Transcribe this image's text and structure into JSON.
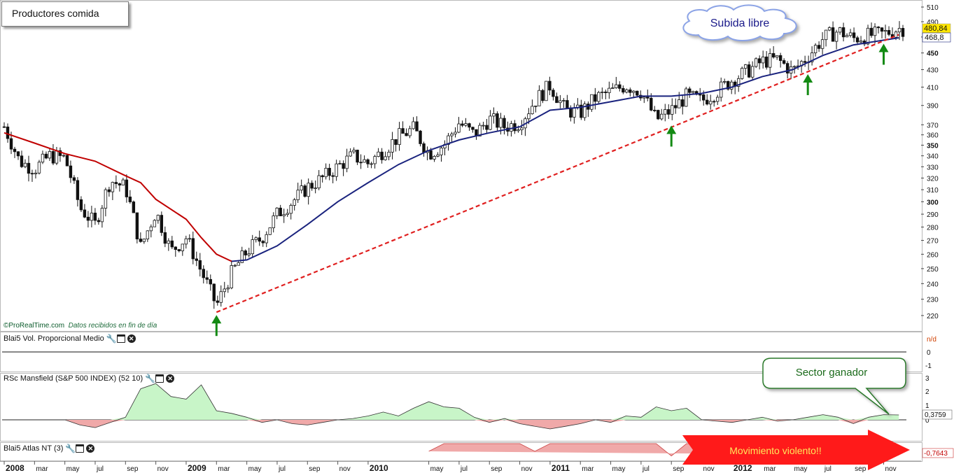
{
  "title": "Productores comida",
  "credit": {
    "source": "ProRealTime.com",
    "note": "Datos recibidos en fin de día"
  },
  "panels": {
    "volume": {
      "label": "Blai5 Vol. Proporcional Medio",
      "scale": [
        "n/d",
        "0",
        "-1"
      ]
    },
    "mansfield": {
      "label": "RSc Mansfield (S&P 500 INDEX) (52 10)",
      "scale": [
        "3",
        "2",
        "1",
        "0"
      ],
      "last_value": "0,3759"
    },
    "atlas": {
      "label": "Blai5 Atlas NT (3)",
      "last_value": "-0,7643"
    }
  },
  "annotations": {
    "cloud": "Subida libre",
    "callout": "Sector ganador",
    "arrow_banner": "Movimiento violento!!"
  },
  "colors": {
    "candle": "#111111",
    "ma_red": "#c00000",
    "ma_blue": "#1a237e",
    "trendline": "#e02020",
    "support_arrow": "#138a13",
    "rs_positive": "#c8f5c8",
    "rs_negative": "#f0a9a9",
    "banner": "#ff1a1a",
    "last_price_bg": "#ffe600"
  },
  "chart_data": {
    "type": "line",
    "subtype": "weekly candlestick with moving averages",
    "title": "Productores comida",
    "y_scale": "log",
    "ylim": [
      215,
      512
    ],
    "yticks": [
      "220",
      "230",
      "240",
      "250",
      "260",
      "270",
      "280",
      "290",
      "300",
      "310",
      "320",
      "330",
      "340",
      "350",
      "360",
      "370",
      "390",
      "410",
      "430",
      "450",
      "470",
      "490",
      "510"
    ],
    "last_price": "480,84",
    "last_ma": "468,8",
    "x_range": [
      "2008-01",
      "2012-12"
    ],
    "xticks": [
      {
        "date": "2008-01",
        "label": "2008",
        "major": true
      },
      {
        "date": "2008-03",
        "label": "mar"
      },
      {
        "date": "2008-05",
        "label": "may"
      },
      {
        "date": "2008-07",
        "label": "jul"
      },
      {
        "date": "2008-09",
        "label": "sep"
      },
      {
        "date": "2008-11",
        "label": "nov"
      },
      {
        "date": "2009-01",
        "label": "2009",
        "major": true
      },
      {
        "date": "2009-03",
        "label": "mar"
      },
      {
        "date": "2009-05",
        "label": "may"
      },
      {
        "date": "2009-07",
        "label": "jul"
      },
      {
        "date": "2009-09",
        "label": "sep"
      },
      {
        "date": "2009-11",
        "label": "nov"
      },
      {
        "date": "2010-01",
        "label": "2010",
        "major": true
      },
      {
        "date": "2010-05",
        "label": "may"
      },
      {
        "date": "2010-07",
        "label": "jul"
      },
      {
        "date": "2010-09",
        "label": "sep"
      },
      {
        "date": "2010-11",
        "label": "nov"
      },
      {
        "date": "2011-01",
        "label": "2011",
        "major": true
      },
      {
        "date": "2011-03",
        "label": "mar"
      },
      {
        "date": "2011-05",
        "label": "may"
      },
      {
        "date": "2011-07",
        "label": "jul"
      },
      {
        "date": "2011-09",
        "label": "sep"
      },
      {
        "date": "2011-11",
        "label": "nov"
      },
      {
        "date": "2012-01",
        "label": "2012",
        "major": true
      },
      {
        "date": "2012-03",
        "label": "mar"
      },
      {
        "date": "2012-05",
        "label": "may"
      },
      {
        "date": "2012-07",
        "label": "jul"
      },
      {
        "date": "2012-09",
        "label": "sep"
      },
      {
        "date": "2012-11",
        "label": "nov"
      }
    ],
    "price_close": [
      [
        "2008-01",
        368
      ],
      [
        "2008-02",
        335
      ],
      [
        "2008-03",
        328
      ],
      [
        "2008-04",
        340
      ],
      [
        "2008-05",
        338
      ],
      [
        "2008-06",
        295
      ],
      [
        "2008-07",
        282
      ],
      [
        "2008-08",
        318
      ],
      [
        "2008-09",
        312
      ],
      [
        "2008-10",
        265
      ],
      [
        "2008-11",
        292
      ],
      [
        "2008-12",
        262
      ],
      [
        "2009-01",
        272
      ],
      [
        "2009-02",
        248
      ],
      [
        "2009-03",
        226
      ],
      [
        "2009-04",
        247
      ],
      [
        "2009-05",
        262
      ],
      [
        "2009-06",
        272
      ],
      [
        "2009-07",
        290
      ],
      [
        "2009-08",
        300
      ],
      [
        "2009-09",
        312
      ],
      [
        "2009-10",
        320
      ],
      [
        "2009-11",
        330
      ],
      [
        "2009-12",
        340
      ],
      [
        "2010-01",
        333
      ],
      [
        "2010-02",
        345
      ],
      [
        "2010-03",
        358
      ],
      [
        "2010-04",
        366
      ],
      [
        "2010-05",
        342
      ],
      [
        "2010-06",
        350
      ],
      [
        "2010-07",
        372
      ],
      [
        "2010-08",
        360
      ],
      [
        "2010-09",
        376
      ],
      [
        "2010-10",
        368
      ],
      [
        "2010-11",
        372
      ],
      [
        "2010-12",
        395
      ],
      [
        "2011-01",
        412
      ],
      [
        "2011-02",
        385
      ],
      [
        "2011-03",
        382
      ],
      [
        "2011-04",
        398
      ],
      [
        "2011-05",
        405
      ],
      [
        "2011-06",
        412
      ],
      [
        "2011-07",
        405
      ],
      [
        "2011-08",
        375
      ],
      [
        "2011-09",
        385
      ],
      [
        "2011-10",
        400
      ],
      [
        "2011-11",
        395
      ],
      [
        "2011-12",
        405
      ],
      [
        "2012-01",
        418
      ],
      [
        "2012-02",
        428
      ],
      [
        "2012-03",
        440
      ],
      [
        "2012-04",
        442
      ],
      [
        "2012-05",
        428
      ],
      [
        "2012-06",
        446
      ],
      [
        "2012-07",
        468
      ],
      [
        "2012-08",
        478
      ],
      [
        "2012-09",
        468
      ],
      [
        "2012-10",
        472
      ],
      [
        "2012-11",
        474
      ],
      [
        "2012-12",
        481
      ]
    ],
    "series": [
      {
        "values": [
          [
            "2008-01",
            362
          ],
          [
            "2008-03",
            352
          ],
          [
            "2008-05",
            342
          ],
          [
            "2008-07",
            335
          ],
          [
            "2008-09",
            322
          ],
          [
            "2008-10",
            316
          ],
          [
            "2008-11",
            302
          ],
          [
            "2009-01",
            286
          ],
          [
            "2009-02",
            272
          ],
          [
            "2009-03",
            260
          ],
          [
            "2009-04",
            255
          ]
        ]
      },
      {
        "values": [
          [
            "2009-04",
            255
          ],
          [
            "2009-05",
            256
          ],
          [
            "2009-07",
            266
          ],
          [
            "2009-09",
            282
          ],
          [
            "2009-11",
            300
          ],
          [
            "2010-01",
            316
          ],
          [
            "2010-03",
            332
          ],
          [
            "2010-05",
            345
          ],
          [
            "2010-07",
            355
          ],
          [
            "2010-09",
            362
          ],
          [
            "2010-11",
            368
          ],
          [
            "2011-01",
            385
          ],
          [
            "2011-03",
            388
          ],
          [
            "2011-05",
            394
          ],
          [
            "2011-07",
            400
          ],
          [
            "2011-09",
            400
          ],
          [
            "2011-11",
            403
          ],
          [
            "2012-01",
            410
          ],
          [
            "2012-03",
            422
          ],
          [
            "2012-05",
            430
          ],
          [
            "2012-07",
            447
          ],
          [
            "2012-09",
            460
          ],
          [
            "2012-11",
            466
          ],
          [
            "2012-12",
            469
          ]
        ]
      }
    ],
    "trendline": {
      "from": [
        "2009-03",
        222
      ],
      "to": [
        "2012-12",
        473
      ]
    },
    "support_arrows": [
      [
        "2009-03",
        222
      ],
      [
        "2011-09",
        372
      ],
      [
        "2012-06",
        428
      ],
      [
        "2012-11",
        465
      ]
    ],
    "mansfield_rs": {
      "ylim": [
        -1,
        3.5
      ],
      "values": [
        [
          "2008-05",
          0.0
        ],
        [
          "2008-06",
          -0.4
        ],
        [
          "2008-07",
          -0.6
        ],
        [
          "2008-08",
          -0.2
        ],
        [
          "2008-09",
          0.2
        ],
        [
          "2008-10",
          2.4
        ],
        [
          "2008-11",
          2.8
        ],
        [
          "2008-12",
          1.8
        ],
        [
          "2009-01",
          1.6
        ],
        [
          "2009-02",
          2.7
        ],
        [
          "2009-03",
          0.7
        ],
        [
          "2009-04",
          0.5
        ],
        [
          "2009-05",
          0.2
        ],
        [
          "2009-06",
          -0.2
        ],
        [
          "2009-07",
          0.0
        ],
        [
          "2009-08",
          -0.3
        ],
        [
          "2009-09",
          -0.4
        ],
        [
          "2009-10",
          -0.2
        ],
        [
          "2009-11",
          0.0
        ],
        [
          "2009-12",
          0.1
        ],
        [
          "2010-01",
          0.3
        ],
        [
          "2010-02",
          0.6
        ],
        [
          "2010-03",
          0.3
        ],
        [
          "2010-04",
          0.9
        ],
        [
          "2010-05",
          1.4
        ],
        [
          "2010-06",
          1.0
        ],
        [
          "2010-07",
          0.9
        ],
        [
          "2010-08",
          0.2
        ],
        [
          "2010-09",
          -0.2
        ],
        [
          "2010-10",
          0.1
        ],
        [
          "2010-11",
          -0.3
        ],
        [
          "2011-01",
          -0.7
        ],
        [
          "2011-02",
          -0.5
        ],
        [
          "2011-03",
          -0.3
        ],
        [
          "2011-04",
          0.0
        ],
        [
          "2011-05",
          -0.2
        ],
        [
          "2011-06",
          0.3
        ],
        [
          "2011-07",
          0.2
        ],
        [
          "2011-08",
          1.0
        ],
        [
          "2011-09",
          0.7
        ],
        [
          "2011-10",
          0.9
        ],
        [
          "2011-11",
          0.0
        ],
        [
          "2011-12",
          -0.1
        ],
        [
          "2012-01",
          -0.2
        ],
        [
          "2012-02",
          0.0
        ],
        [
          "2012-03",
          0.2
        ],
        [
          "2012-04",
          -0.1
        ],
        [
          "2012-05",
          0.0
        ],
        [
          "2012-06",
          0.2
        ],
        [
          "2012-07",
          0.4
        ],
        [
          "2012-08",
          0.2
        ],
        [
          "2012-09",
          -0.3
        ],
        [
          "2012-10",
          0.2
        ],
        [
          "2012-11",
          0.4
        ],
        [
          "2012-12",
          0.38
        ]
      ]
    },
    "atlas_nt": {
      "ylim": [
        -1,
        0
      ],
      "values": [
        [
          "2010-05",
          -0.5
        ],
        [
          "2010-06",
          0.0
        ],
        [
          "2010-11",
          0.0
        ],
        [
          "2010-12",
          -0.5
        ],
        [
          "2011-01",
          0.0
        ],
        [
          "2011-08",
          0.0
        ],
        [
          "2011-09",
          -0.8
        ],
        [
          "2011-10",
          0.0
        ],
        [
          "2012-11",
          0.0
        ],
        [
          "2012-12",
          -0.76
        ]
      ]
    }
  }
}
